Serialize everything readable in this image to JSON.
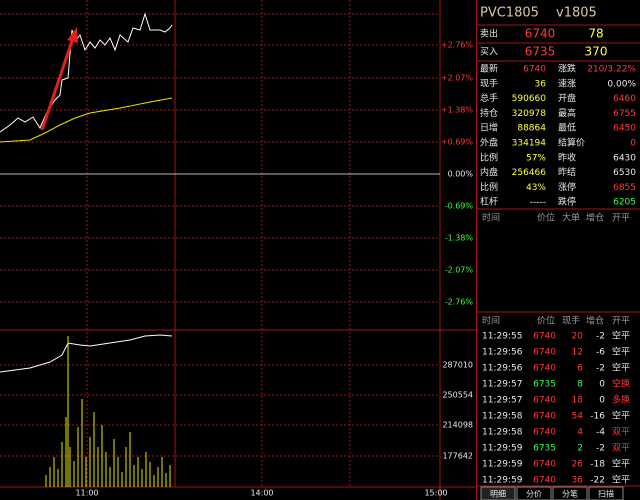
{
  "header": {
    "symbol": "PVC1805",
    "code": "v1805"
  },
  "quote": [
    {
      "label": "卖出",
      "price": "6740",
      "volume": "78"
    },
    {
      "label": "买入",
      "price": "6735",
      "volume": "370"
    }
  ],
  "stats": [
    [
      "最新",
      "6740",
      "涨跌",
      "210/3.22%"
    ],
    [
      "现手",
      "36",
      "速涨",
      "0.00%"
    ],
    [
      "总手",
      "590660",
      "开盘",
      "6460"
    ],
    [
      "持仓",
      "320978",
      "最高",
      "6755"
    ],
    [
      "日增",
      "88864",
      "最低",
      "6450"
    ],
    [
      "外盘",
      "334194",
      "结算价",
      "0"
    ],
    [
      "比例",
      "57%",
      "昨收",
      "6430"
    ],
    [
      "内盘",
      "256466",
      "昨结",
      "6530"
    ],
    [
      "比例",
      "43%",
      "涨停",
      "6855"
    ],
    [
      "杠杆",
      "-----",
      "跌停",
      "6205"
    ]
  ],
  "big_orders": {
    "headers": [
      "时间",
      "价位",
      "大单",
      "增仓",
      "开平"
    ]
  },
  "ticks": {
    "headers": [
      "时间",
      "价位",
      "现手",
      "增仓",
      "开平"
    ],
    "rows": [
      [
        "11:29:55",
        "6740",
        "20",
        "-2",
        "空平"
      ],
      [
        "11:29:56",
        "6740",
        "12",
        "-6",
        "空平"
      ],
      [
        "11:29:56",
        "6740",
        "6",
        "-2",
        "空平"
      ],
      [
        "11:29:57",
        "6735",
        "8",
        "0",
        "空换"
      ],
      [
        "11:29:57",
        "6740",
        "18",
        "0",
        "多换"
      ],
      [
        "11:29:58",
        "6740",
        "54",
        "-16",
        "空平"
      ],
      [
        "11:29:58",
        "6740",
        "4",
        "-4",
        "双平"
      ],
      [
        "11:29:59",
        "6735",
        "2",
        "-2",
        "双平"
      ],
      [
        "11:29:59",
        "6740",
        "26",
        "-18",
        "空平"
      ],
      [
        "11:29:59",
        "6740",
        "36",
        "-22",
        "空平"
      ]
    ]
  },
  "chart": {
    "price_axis": [
      "+2.76%",
      "+2.07%",
      "+1.38%",
      "+0.69%",
      "0.00%",
      "-0.69%",
      "-1.38%",
      "-2.07%",
      "-2.76%"
    ],
    "volume_axis": [
      "287010",
      "250554",
      "214098",
      "177642"
    ],
    "time_axis": [
      "11:00",
      "14:00",
      "15:00"
    ]
  },
  "tabs": [
    "明细",
    "分价",
    "分笔",
    "扫描"
  ]
}
